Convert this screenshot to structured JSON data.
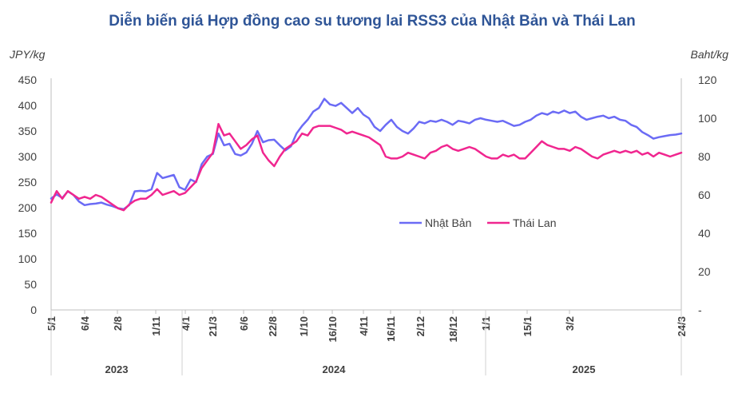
{
  "chart_data": {
    "type": "line",
    "title": "Diễn biến giá Hợp đồng cao su tương lai RSS3 của Nhật Bản và Thái Lan",
    "ylabel_left": "JPY/kg",
    "ylabel_right": "Baht/kg",
    "ylim_left": [
      0,
      450
    ],
    "ylim_right": [
      0,
      120
    ],
    "yticks_left": [
      "0",
      "50",
      "100",
      "150",
      "200",
      "250",
      "300",
      "350",
      "400",
      "450"
    ],
    "yticks_right": [
      "-",
      "20",
      "40",
      "60",
      "80",
      "100",
      "120"
    ],
    "xticks": [
      "5/1",
      "6/4",
      "2/8",
      "1/11",
      "4/1",
      "21/3",
      "6/6",
      "22/8",
      "1/10",
      "16/10",
      "4/11",
      "16/11",
      "2/12",
      "18/12",
      "1/1",
      "15/1",
      "3/2",
      "24/3"
    ],
    "years": [
      "2023",
      "2024",
      "2025"
    ],
    "legend_position": "center-right",
    "grid": false,
    "series": [
      {
        "name": "Nhật Bản",
        "axis": "left",
        "color": "#6b6bf5",
        "values": [
          [
            0,
            218
          ],
          [
            1,
            226
          ],
          [
            2,
            219
          ],
          [
            3,
            232
          ],
          [
            4,
            225
          ],
          [
            5,
            212
          ],
          [
            6,
            205
          ],
          [
            7,
            207
          ],
          [
            8,
            208
          ],
          [
            9,
            210
          ],
          [
            10,
            206
          ],
          [
            11,
            203
          ],
          [
            12,
            199
          ],
          [
            13,
            197
          ],
          [
            14,
            205
          ],
          [
            15,
            232
          ],
          [
            16,
            233
          ],
          [
            17,
            232
          ],
          [
            18,
            236
          ],
          [
            19,
            268
          ],
          [
            20,
            258
          ],
          [
            21,
            261
          ],
          [
            22,
            264
          ],
          [
            23,
            240
          ],
          [
            24,
            235
          ],
          [
            25,
            255
          ],
          [
            26,
            250
          ],
          [
            27,
            285
          ],
          [
            28,
            300
          ],
          [
            29,
            305
          ],
          [
            30,
            345
          ],
          [
            31,
            322
          ],
          [
            32,
            325
          ],
          [
            33,
            305
          ],
          [
            34,
            302
          ],
          [
            35,
            308
          ],
          [
            36,
            325
          ],
          [
            37,
            350
          ],
          [
            38,
            328
          ],
          [
            39,
            332
          ],
          [
            40,
            333
          ],
          [
            41,
            322
          ],
          [
            42,
            312
          ],
          [
            43,
            320
          ],
          [
            44,
            345
          ],
          [
            45,
            360
          ],
          [
            46,
            372
          ],
          [
            47,
            388
          ],
          [
            48,
            395
          ],
          [
            49,
            413
          ],
          [
            50,
            402
          ],
          [
            51,
            399
          ],
          [
            52,
            405
          ],
          [
            53,
            395
          ],
          [
            54,
            385
          ],
          [
            55,
            395
          ],
          [
            56,
            382
          ],
          [
            57,
            375
          ],
          [
            58,
            358
          ],
          [
            59,
            350
          ],
          [
            60,
            362
          ],
          [
            61,
            372
          ],
          [
            62,
            358
          ],
          [
            63,
            350
          ],
          [
            64,
            345
          ],
          [
            65,
            355
          ],
          [
            66,
            368
          ],
          [
            67,
            365
          ],
          [
            68,
            370
          ],
          [
            69,
            368
          ],
          [
            70,
            372
          ],
          [
            71,
            368
          ],
          [
            72,
            362
          ],
          [
            73,
            370
          ],
          [
            74,
            368
          ],
          [
            75,
            365
          ],
          [
            76,
            372
          ],
          [
            77,
            375
          ],
          [
            78,
            372
          ],
          [
            79,
            370
          ],
          [
            80,
            368
          ],
          [
            81,
            370
          ],
          [
            82,
            365
          ],
          [
            83,
            360
          ],
          [
            84,
            362
          ],
          [
            85,
            368
          ],
          [
            86,
            372
          ],
          [
            87,
            380
          ],
          [
            88,
            385
          ],
          [
            89,
            382
          ],
          [
            90,
            388
          ],
          [
            91,
            385
          ],
          [
            92,
            390
          ],
          [
            93,
            385
          ],
          [
            94,
            388
          ],
          [
            95,
            378
          ],
          [
            96,
            372
          ],
          [
            97,
            375
          ],
          [
            98,
            378
          ],
          [
            99,
            380
          ],
          [
            100,
            375
          ],
          [
            101,
            378
          ],
          [
            102,
            372
          ],
          [
            103,
            370
          ],
          [
            104,
            362
          ],
          [
            105,
            358
          ],
          [
            106,
            348
          ],
          [
            107,
            342
          ],
          [
            108,
            335
          ],
          [
            109,
            338
          ],
          [
            110,
            340
          ],
          [
            111,
            342
          ],
          [
            112,
            343
          ],
          [
            113,
            345
          ]
        ]
      },
      {
        "name": "Thái Lan",
        "axis": "right",
        "color": "#f0268f",
        "values": [
          [
            0,
            56
          ],
          [
            1,
            62
          ],
          [
            2,
            58
          ],
          [
            3,
            62
          ],
          [
            4,
            60
          ],
          [
            5,
            58
          ],
          [
            6,
            59
          ],
          [
            7,
            58
          ],
          [
            8,
            60
          ],
          [
            9,
            59
          ],
          [
            10,
            57
          ],
          [
            11,
            55
          ],
          [
            12,
            53
          ],
          [
            13,
            52
          ],
          [
            14,
            55
          ],
          [
            15,
            57
          ],
          [
            16,
            58
          ],
          [
            17,
            58
          ],
          [
            18,
            60
          ],
          [
            19,
            63
          ],
          [
            20,
            60
          ],
          [
            21,
            61
          ],
          [
            22,
            62
          ],
          [
            23,
            60
          ],
          [
            24,
            61
          ],
          [
            25,
            64
          ],
          [
            26,
            67
          ],
          [
            27,
            74
          ],
          [
            28,
            78
          ],
          [
            29,
            82
          ],
          [
            30,
            97
          ],
          [
            31,
            91
          ],
          [
            32,
            92
          ],
          [
            33,
            88
          ],
          [
            34,
            84
          ],
          [
            35,
            86
          ],
          [
            36,
            89
          ],
          [
            37,
            91
          ],
          [
            38,
            82
          ],
          [
            39,
            78
          ],
          [
            40,
            75
          ],
          [
            41,
            80
          ],
          [
            42,
            84
          ],
          [
            43,
            86
          ],
          [
            44,
            88
          ],
          [
            45,
            92
          ],
          [
            46,
            91
          ],
          [
            47,
            95
          ],
          [
            48,
            96
          ],
          [
            49,
            96
          ],
          [
            50,
            96
          ],
          [
            51,
            95
          ],
          [
            52,
            94
          ],
          [
            53,
            92
          ],
          [
            54,
            93
          ],
          [
            55,
            92
          ],
          [
            56,
            91
          ],
          [
            57,
            90
          ],
          [
            58,
            88
          ],
          [
            59,
            86
          ],
          [
            60,
            80
          ],
          [
            61,
            79
          ],
          [
            62,
            79
          ],
          [
            63,
            80
          ],
          [
            64,
            82
          ],
          [
            65,
            81
          ],
          [
            66,
            80
          ],
          [
            67,
            79
          ],
          [
            68,
            82
          ],
          [
            69,
            83
          ],
          [
            70,
            85
          ],
          [
            71,
            86
          ],
          [
            72,
            84
          ],
          [
            73,
            83
          ],
          [
            74,
            84
          ],
          [
            75,
            85
          ],
          [
            76,
            84
          ],
          [
            77,
            82
          ],
          [
            78,
            80
          ],
          [
            79,
            79
          ],
          [
            80,
            79
          ],
          [
            81,
            81
          ],
          [
            82,
            80
          ],
          [
            83,
            81
          ],
          [
            84,
            79
          ],
          [
            85,
            79
          ],
          [
            86,
            82
          ],
          [
            87,
            85
          ],
          [
            88,
            88
          ],
          [
            89,
            86
          ],
          [
            90,
            85
          ],
          [
            91,
            84
          ],
          [
            92,
            84
          ],
          [
            93,
            83
          ],
          [
            94,
            85
          ],
          [
            95,
            84
          ],
          [
            96,
            82
          ],
          [
            97,
            80
          ],
          [
            98,
            79
          ],
          [
            99,
            81
          ],
          [
            100,
            82
          ],
          [
            101,
            83
          ],
          [
            102,
            82
          ],
          [
            103,
            83
          ],
          [
            104,
            82
          ],
          [
            105,
            83
          ],
          [
            106,
            81
          ],
          [
            107,
            82
          ],
          [
            108,
            80
          ],
          [
            109,
            82
          ],
          [
            110,
            81
          ],
          [
            111,
            80
          ],
          [
            112,
            81
          ],
          [
            113,
            82
          ]
        ]
      }
    ]
  }
}
